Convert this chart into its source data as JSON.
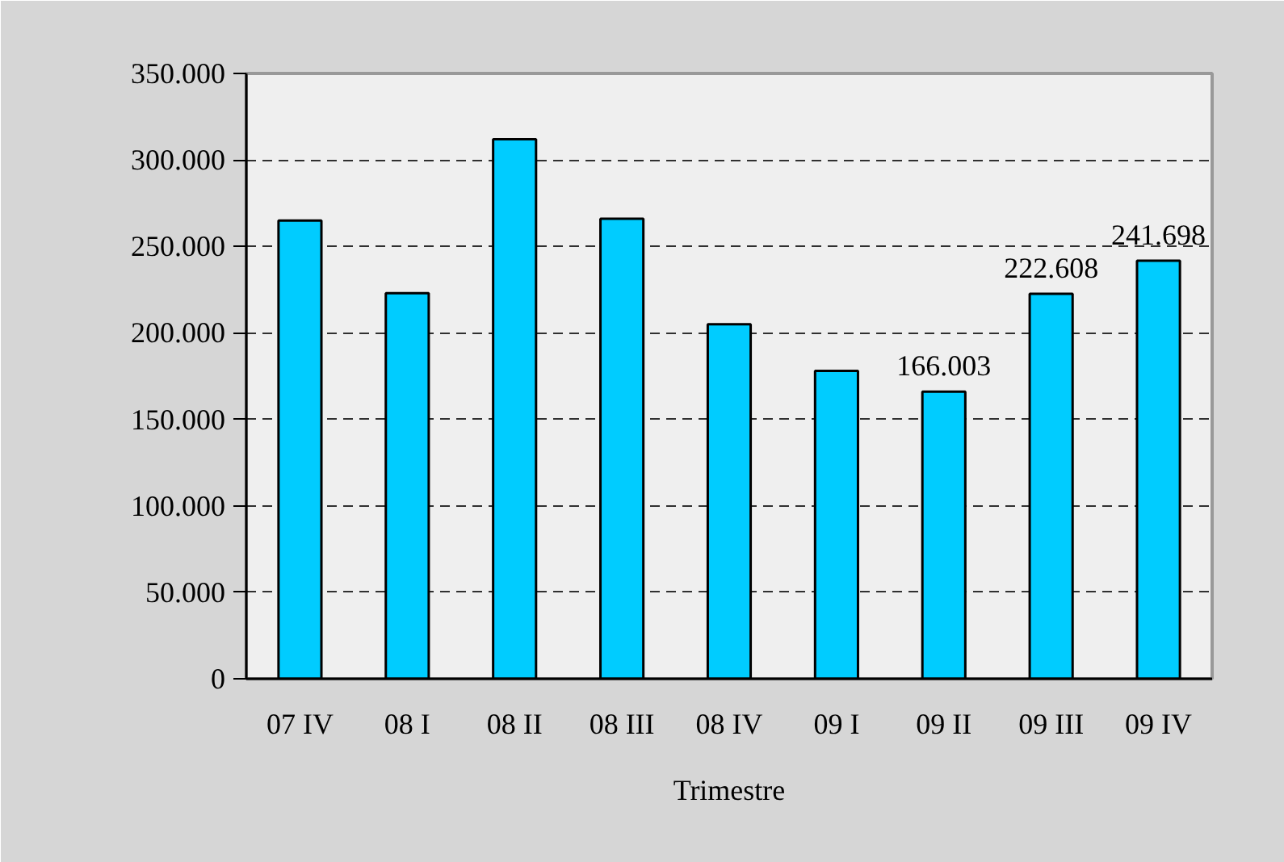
{
  "chart_data": {
    "type": "bar",
    "xlabel": "Trimestre",
    "categories": [
      "07 IV",
      "08 I",
      "08 II",
      "08 III",
      "08 IV",
      "09 I",
      "09 II",
      "09 III",
      "09 IV"
    ],
    "values": [
      265000,
      223000,
      312000,
      266000,
      205000,
      178000,
      166003,
      222608,
      241698
    ],
    "value_labels": [
      null,
      null,
      null,
      null,
      null,
      null,
      "166.003",
      "222.608",
      "241.698"
    ],
    "color": "#00ccff",
    "ylim": [
      0,
      350000
    ],
    "yticks": [
      0,
      {
        "value": 50000,
        "label": "50.000"
      },
      {
        "value": 100000,
        "label": "100.000"
      },
      {
        "value": 150000,
        "label": "150.000"
      },
      {
        "value": 200000,
        "label": "200.000"
      },
      {
        "value": 250000,
        "label": "250.000"
      },
      {
        "value": 300000,
        "label": "300.000"
      },
      {
        "value": 350000,
        "label": "350.000"
      }
    ],
    "grid": "y"
  }
}
